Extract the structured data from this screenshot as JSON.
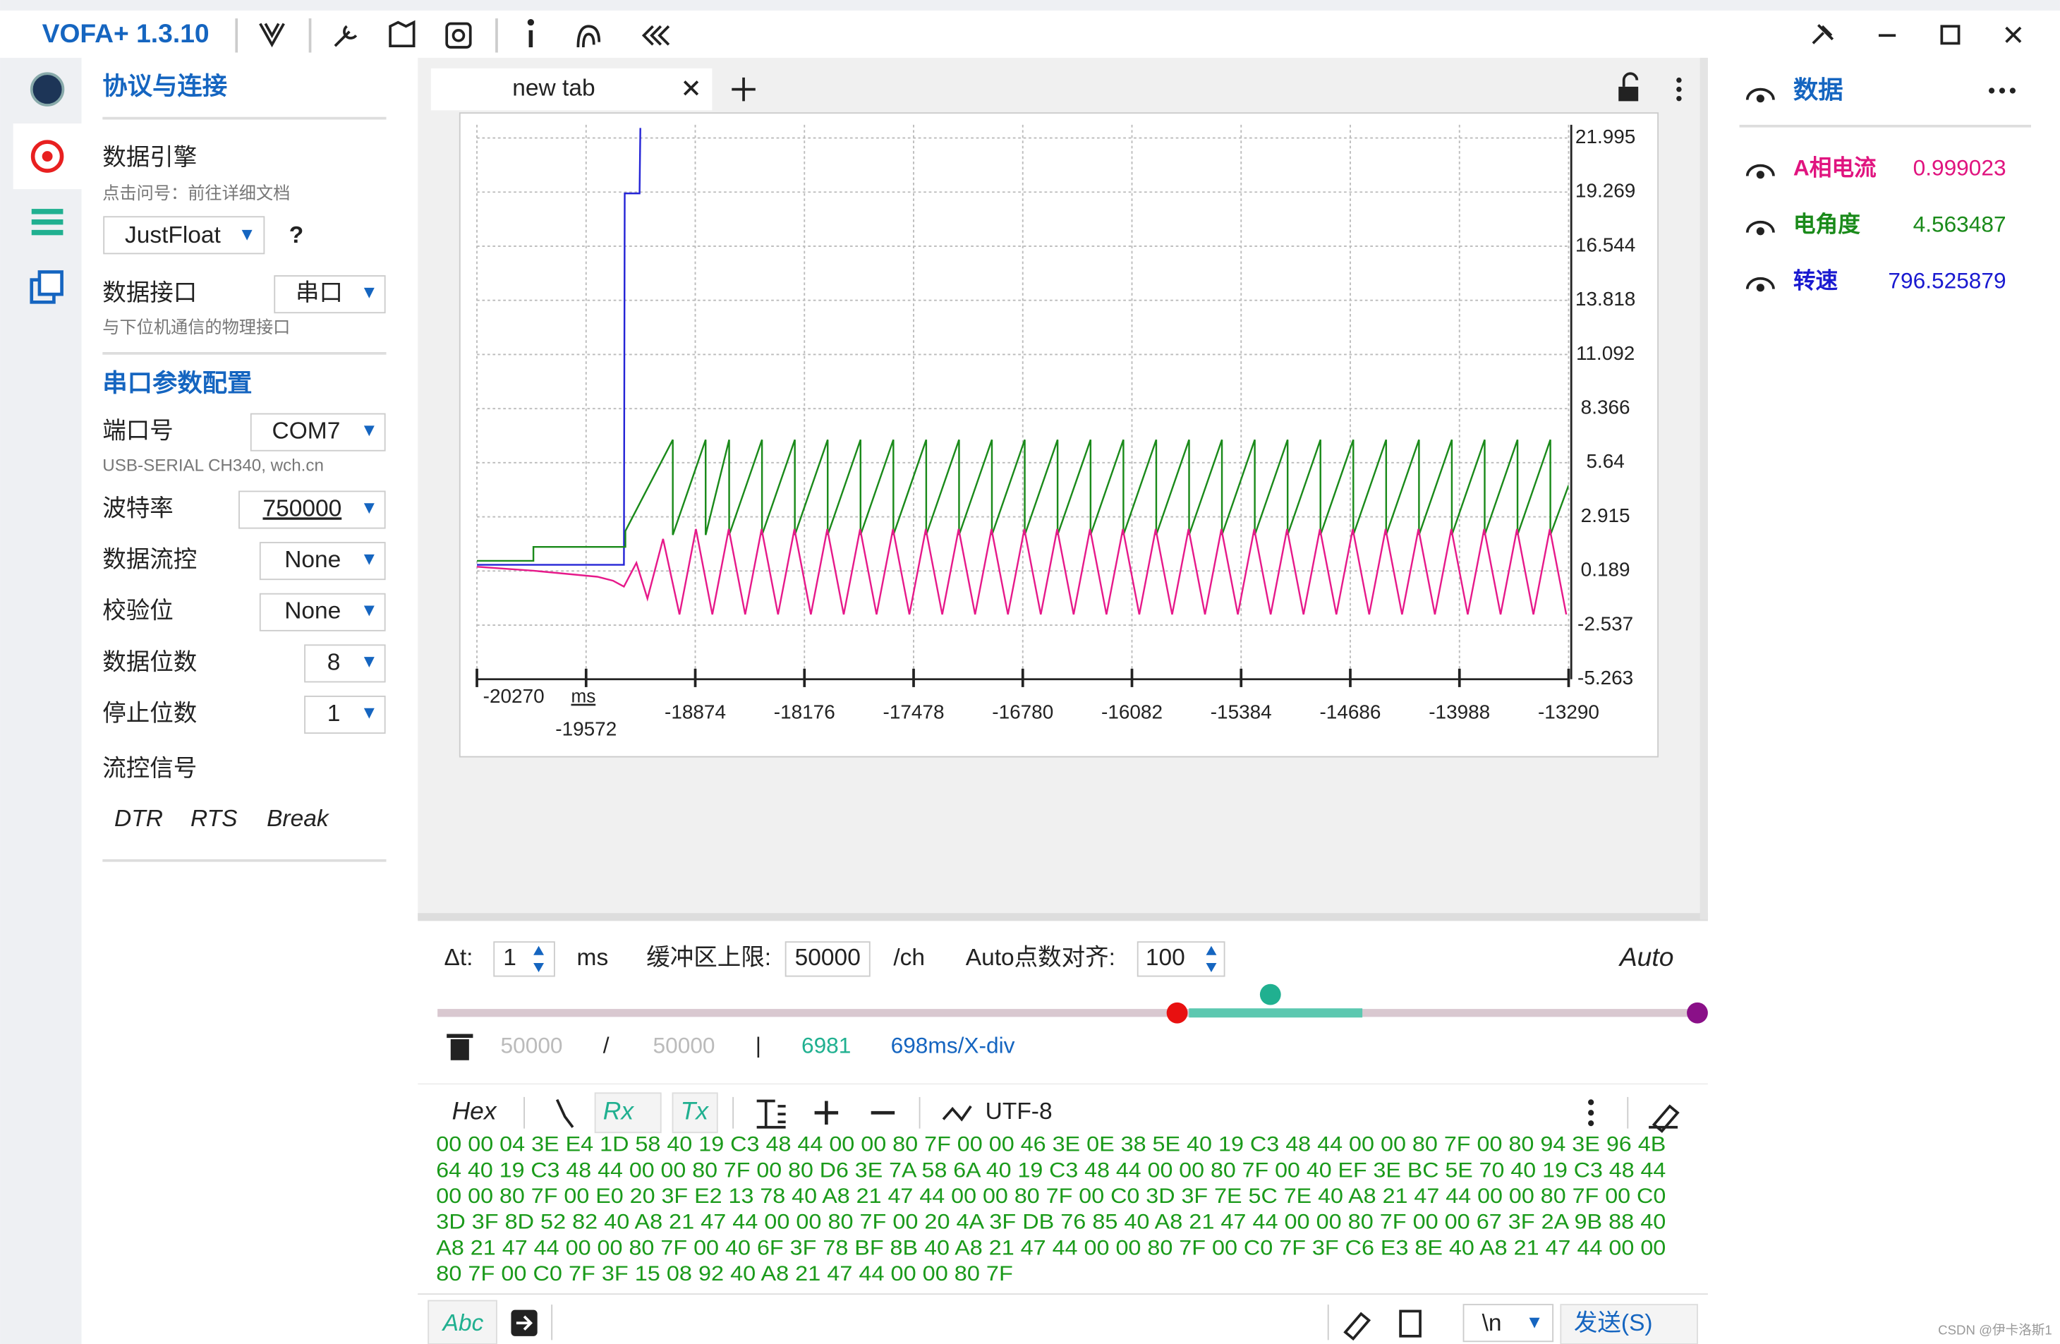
{
  "app": {
    "title": "VOFA+ 1.3.10"
  },
  "left_panel": {
    "heading": "协议与连接",
    "engine_label": "数据引擎",
    "engine_note": "点击问号：前往详细文档",
    "engine_value": "JustFloat",
    "help": "?",
    "interface_label": "数据接口",
    "interface_value": "串口",
    "interface_note": "与下位机通信的物理接口",
    "serial_heading": "串口参数配置",
    "port_label": "端口号",
    "port_value": "COM7",
    "port_note": "USB-SERIAL CH340, wch.cn",
    "baud_label": "波特率",
    "baud_value": "750000",
    "flow_label": "数据流控",
    "flow_value": "None",
    "parity_label": "校验位",
    "parity_value": "None",
    "databits_label": "数据位数",
    "databits_value": "8",
    "stopbits_label": "停止位数",
    "stopbits_value": "1",
    "signals_label": "流控信号",
    "signals": [
      "DTR",
      "RTS",
      "Break"
    ]
  },
  "tab": {
    "name": "new tab"
  },
  "chart_data": {
    "type": "line",
    "x_unit": "ms",
    "xlim": [
      -20270,
      -13290
    ],
    "xticks": [
      -20270,
      -19572,
      -18874,
      -18176,
      -17478,
      -16780,
      -16082,
      -15384,
      -14686,
      -13988,
      -13290
    ],
    "ylim": [
      -5.263,
      21.995
    ],
    "yticks": [
      21.995,
      19.269,
      16.544,
      13.818,
      11.092,
      8.366,
      5.64,
      2.915,
      0.189,
      -2.537,
      -5.263
    ],
    "grid": true,
    "series": [
      {
        "name": "转速",
        "color": "#2424d6",
        "x": [
          -20270,
          -19330,
          -19325,
          -19230,
          -19225
        ],
        "values": [
          0.5,
          0.5,
          19.2,
          19.2,
          22.5
        ]
      },
      {
        "name": "电角度",
        "color": "#1a8a1a",
        "x": [
          -20270,
          -19909,
          -19909,
          -19321,
          -19321,
          -19018,
          -19018,
          -18808,
          -18808,
          -18657,
          -18657,
          -18447,
          -18447,
          -18237,
          -18237,
          -18027,
          -18027,
          -17817,
          -17817,
          -17607,
          -17607,
          -17397,
          -17397,
          -17187,
          -17187,
          -16977,
          -16977,
          -16767,
          -16767,
          -16557,
          -16557,
          -16347,
          -16347,
          -16137,
          -16137,
          -15927,
          -15927,
          -15717,
          -15717,
          -15507,
          -15507,
          -15297,
          -15297,
          -15087,
          -15087,
          -14877,
          -14877,
          -14667,
          -14667,
          -14457,
          -14457,
          -14247,
          -14247,
          -14037,
          -14037,
          -13827,
          -13827,
          -13617,
          -13617,
          -13407,
          -13407,
          -13290
        ],
        "values": [
          0.7,
          0.7,
          1.4,
          1.4,
          2.2,
          6.8,
          2.0,
          6.8,
          2.0,
          6.8,
          2.0,
          6.8,
          2.0,
          6.8,
          2.0,
          6.8,
          2.0,
          6.8,
          2.0,
          6.8,
          2.0,
          6.8,
          2.0,
          6.8,
          2.0,
          6.8,
          2.0,
          6.8,
          2.0,
          6.8,
          2.0,
          6.8,
          2.0,
          6.8,
          2.0,
          6.8,
          2.0,
          6.8,
          2.0,
          6.8,
          2.0,
          6.8,
          2.0,
          6.8,
          2.0,
          6.8,
          2.0,
          6.8,
          2.0,
          6.8,
          2.0,
          6.8,
          2.0,
          6.8,
          2.0,
          6.8,
          2.0,
          6.8,
          2.0,
          6.8,
          2.0,
          4.5
        ]
      },
      {
        "name": "A相电流",
        "color": "#e6198a",
        "x": [
          -20270,
          -19909,
          -19500,
          -19400,
          -19330,
          -19250,
          -19180,
          -19080,
          -18975,
          -18870,
          -18765,
          -18660,
          -18555,
          -18450,
          -18345,
          -18240,
          -18135,
          -18030,
          -17925,
          -17820,
          -17715,
          -17610,
          -17505,
          -17400,
          -17295,
          -17190,
          -17085,
          -16980,
          -16875,
          -16770,
          -16665,
          -16560,
          -16455,
          -16350,
          -16245,
          -16140,
          -16035,
          -15930,
          -15825,
          -15720,
          -15615,
          -15510,
          -15405,
          -15300,
          -15195,
          -15090,
          -14985,
          -14880,
          -14775,
          -14670,
          -14565,
          -14460,
          -14355,
          -14250,
          -14145,
          -14040,
          -13935,
          -13830,
          -13725,
          -13620,
          -13515,
          -13410,
          -13305
        ],
        "values": [
          0.4,
          0.2,
          -0.1,
          -0.3,
          -0.6,
          0.6,
          -1.2,
          1.8,
          -2.0,
          2.3,
          -2.0,
          2.3,
          -2.0,
          2.3,
          -2.0,
          2.3,
          -2.0,
          2.3,
          -2.0,
          2.3,
          -2.0,
          2.3,
          -2.0,
          2.3,
          -2.0,
          2.3,
          -2.0,
          2.3,
          -2.0,
          2.3,
          -2.0,
          2.3,
          -2.0,
          2.3,
          -2.0,
          2.3,
          -2.0,
          2.3,
          -2.0,
          2.3,
          -2.0,
          2.3,
          -2.0,
          2.3,
          -2.0,
          2.3,
          -2.0,
          2.3,
          -2.0,
          2.3,
          -2.0,
          2.3,
          -2.0,
          2.3,
          -2.0,
          2.3,
          -2.0,
          2.3,
          -2.0,
          2.3,
          -2.0,
          2.3,
          -2.0
        ]
      }
    ]
  },
  "right_panel": {
    "heading": "数据",
    "channels": [
      {
        "name": "A相电流",
        "value": "0.999023",
        "color": "#e0147f"
      },
      {
        "name": "电角度",
        "value": "4.563487",
        "color": "#1a8a1a"
      },
      {
        "name": "转速",
        "value": "796.525879",
        "color": "#1a1ad0"
      }
    ]
  },
  "controls": {
    "dt_label": "Δt:",
    "dt_value": "1",
    "dt_unit": "ms",
    "buffer_label": "缓冲区上限:",
    "buffer_value": "50000",
    "buffer_unit": "/ch",
    "align_label": "Auto点数对齐:",
    "align_value": "100",
    "mode": "Auto"
  },
  "stats": {
    "count": "50000",
    "sep1": "/",
    "limit": "50000",
    "sep2": "|",
    "points": "6981",
    "scale": "698ms/X-div"
  },
  "toolbar": {
    "hex": "Hex",
    "rx": "Rx",
    "tx": "Tx",
    "encoding": "UTF-8"
  },
  "hex_lines": [
    "00 00 04 3E E4 1D 58 40 19 C3 48 44 00 00 80 7F 00 00 46 3E 0E 38 5E 40 19 C3 48 44 00 00 80 7F 00 80 94 3E 96 4B",
    "64 40 19 C3 48 44 00 00 80 7F 00 80 D6 3E 7A 58 6A 40 19 C3 48 44 00 00 80 7F 00 40 EF 3E BC 5E 70 40 19 C3 48 44",
    "00 00 80 7F 00 E0 20 3F E2 13 78 40 A8 21 47 44 00 00 80 7F 00 C0 3D 3F 7E 5C 7E 40 A8 21 47 44 00 00 80 7F 00 C0",
    "3D 3F 8D 52 82 40 A8 21 47 44 00 00 80 7F 00 20 4A 3F DB 76 85 40 A8 21 47 44 00 00 80 7F 00 00 67 3F 2A 9B 88 40",
    "A8 21 47 44 00 00 80 7F 00 40 6F 3F 78 BF 8B 40 A8 21 47 44 00 00 80 7F 00 C0 7F 3F C6 E3 8E 40 A8 21 47 44 00 00",
    "80 7F 00 C0 7F 3F 15 08 92 40 A8 21 47 44 00 00 80 7F"
  ],
  "send_bar": {
    "mode": "Abc",
    "newline": "\\n",
    "send": "发送(S)"
  },
  "watermark": "CSDN @伊卡洛斯1"
}
